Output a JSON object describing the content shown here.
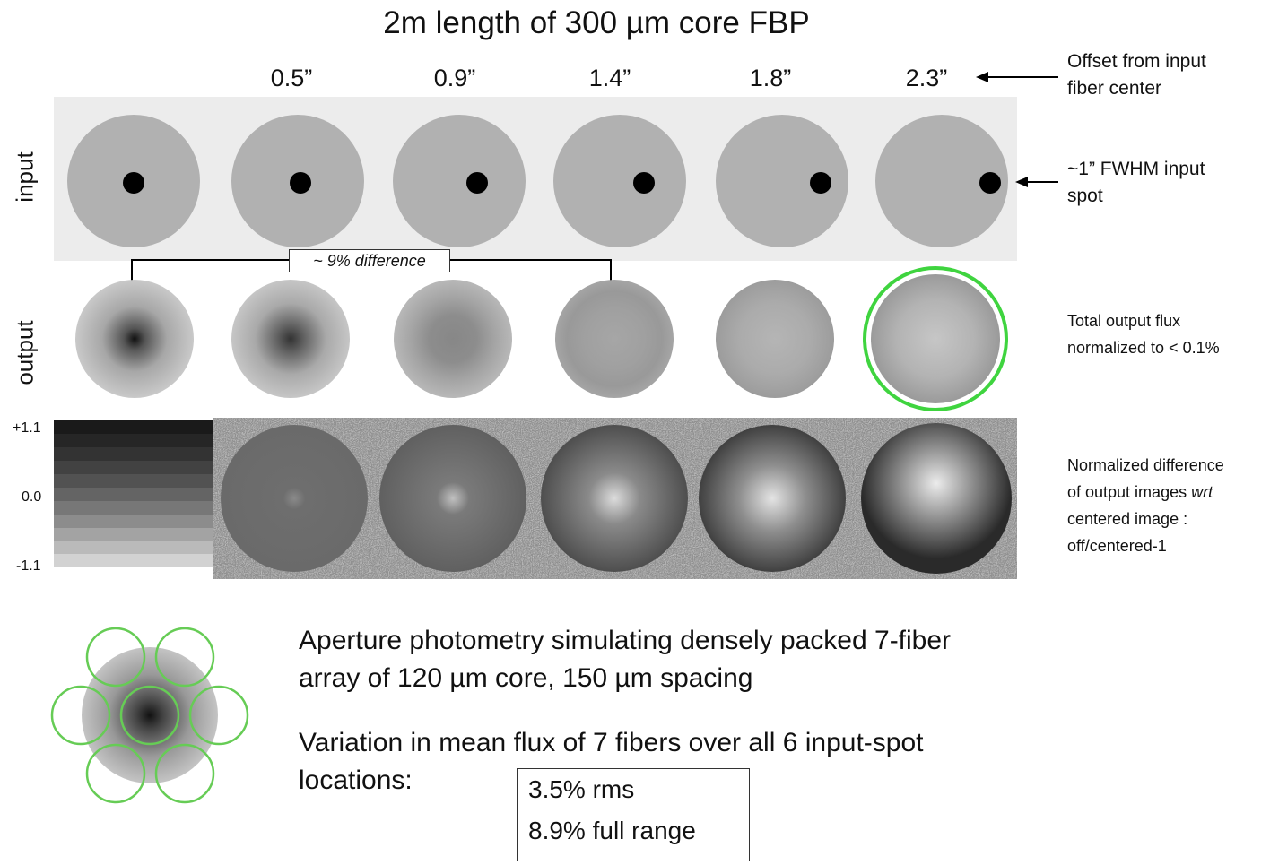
{
  "title": "2m length of 300 µm core FBP",
  "offsets": [
    "0.5”",
    "0.9”",
    "1.4”",
    "1.8”",
    "2.3”"
  ],
  "annotations": {
    "offset_note_line1": "Offset from input",
    "offset_note_line2": "fiber center",
    "spot_note_line1": "~1” FWHM input",
    "spot_note_line2": "spot",
    "flux_note_line1": "Total output flux",
    "flux_note_line2": "normalized to < 0.1%",
    "diff_note_line1": "Normalized difference",
    "diff_note_line2_pre": "of output images ",
    "diff_note_line2_em": "wrt",
    "diff_note_line3": "centered image :",
    "diff_note_line4": "off/centered-1",
    "callout_tilde": "~",
    "callout_text": "9% difference"
  },
  "row_labels": {
    "input": "input",
    "output": "output"
  },
  "scale": {
    "top": "+1.1",
    "mid": "0.0",
    "bottom": "-1.1"
  },
  "photometry": {
    "line1": "Aperture photometry simulating densely packed 7-fiber",
    "line2": "array of 120 µm core, 150 µm spacing",
    "line3": "Variation in mean flux of 7 fibers over all 6 input-spot",
    "line4": "locations:",
    "rms": "3.5% rms",
    "range": "8.9% full range"
  },
  "colors": {
    "highlight": "#3fd43f",
    "aperture": "#66cc55"
  }
}
